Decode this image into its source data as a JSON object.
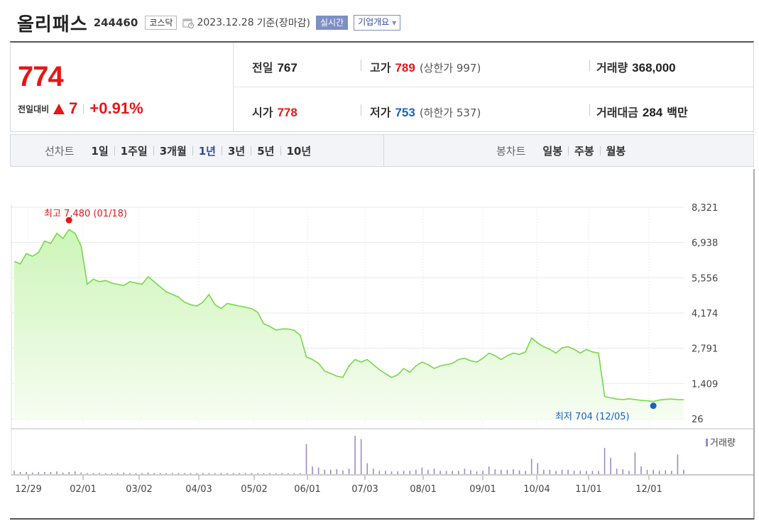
{
  "header": {
    "name": "올리패스",
    "code": "244460",
    "market": "코스닥",
    "date": "2023.12.28",
    "basis": "기준(장마감)",
    "realtime_label": "실시간",
    "company_label": "기업개요"
  },
  "price": {
    "current": "774",
    "change_label": "전일대비",
    "change": "7",
    "change_pct": "+0.91%",
    "prev_close_label": "전일",
    "prev_close": "767",
    "high_label": "고가",
    "high": "789",
    "upper_limit": "(상한가 997)",
    "volume_label": "거래량",
    "volume": "368,000",
    "open_label": "시가",
    "open": "778",
    "low_label": "저가",
    "low": "753",
    "lower_limit": "(하한가 537)",
    "amount_label": "거래대금",
    "amount": "284",
    "amount_unit": "백만"
  },
  "tabs": {
    "line_label": "선차트",
    "line_periods": [
      "1일",
      "1주일",
      "3개월",
      "1년",
      "3년",
      "5년",
      "10년"
    ],
    "selected": "1년",
    "candle_label": "봉차트",
    "candle_periods": [
      "일봉",
      "주봉",
      "월봉"
    ]
  },
  "colors": {
    "up": "#e51717",
    "down": "#1663c6",
    "line": "#76d84a",
    "fill_top": "#cdf5b8",
    "fill_bottom": "#f6fdf2",
    "volume": "#9b8bc7",
    "selected_tab": "#2f4ba3"
  },
  "chart_data": {
    "type": "area",
    "y_ticks": [
      "8,321",
      "6,938",
      "5,556",
      "4,174",
      "2,791",
      "1,409",
      "26"
    ],
    "ylim": [
      26,
      8321
    ],
    "x_ticks": [
      "12/29",
      "02/01",
      "03/02",
      "04/03",
      "05/02",
      "06/01",
      "07/03",
      "08/01",
      "09/01",
      "10/04",
      "11/01",
      "12/01"
    ],
    "high_label": "최고 7,480 (01/18)",
    "low_label": "최저 704 (12/05)",
    "high": {
      "value": 7480,
      "date": "01/18"
    },
    "low": {
      "value": 704,
      "date": "12/05"
    },
    "volume_label": "거래량",
    "series": [
      {
        "values": [
          6200,
          6100,
          6500,
          6400,
          6550,
          7000,
          6900,
          7300,
          7100,
          7450,
          7300,
          6800,
          5300,
          5500,
          5400,
          5450,
          5350,
          5300,
          5250,
          5400,
          5350,
          5300,
          5600,
          5400,
          5200,
          5000,
          4900,
          4800,
          4600,
          4500,
          4450,
          4600,
          4900,
          4500,
          4350,
          4550,
          4500,
          4450,
          4400,
          4350,
          4200,
          3750,
          3650,
          3500,
          3550,
          3550,
          3500,
          3300,
          2450,
          2350,
          2200,
          1900,
          1800,
          1700,
          1650,
          2100,
          2350,
          2250,
          2350,
          2150,
          1950,
          1800,
          1650,
          1750,
          2000,
          1850,
          2100,
          2250,
          2150,
          2000,
          2100,
          2150,
          2200,
          2350,
          2400,
          2300,
          2250,
          2400,
          2600,
          2500,
          2350,
          2500,
          2600,
          2550,
          2650,
          3200,
          3000,
          2850,
          2750,
          2600,
          2800,
          2850,
          2750,
          2600,
          2750,
          2650,
          2600,
          900,
          850,
          800,
          780,
          810,
          780,
          750,
          730,
          704,
          760,
          790,
          800,
          780,
          774
        ]
      }
    ],
    "volume_values": [
      6,
      4,
      4,
      3,
      4,
      4,
      4,
      5,
      3,
      4,
      5,
      3,
      2,
      2,
      2,
      2,
      2,
      2,
      3,
      2,
      2,
      2,
      3,
      2,
      2,
      2,
      2,
      2,
      2,
      2,
      2,
      2,
      2,
      2,
      2,
      2,
      2,
      2,
      2,
      2,
      2,
      2,
      2,
      2,
      2,
      2,
      2,
      2,
      55,
      14,
      12,
      8,
      8,
      9,
      7,
      10,
      70,
      64,
      20,
      10,
      6,
      6,
      5,
      5,
      6,
      6,
      8,
      12,
      8,
      10,
      6,
      6,
      6,
      6,
      10,
      7,
      5,
      6,
      14,
      9,
      8,
      8,
      9,
      7,
      6,
      28,
      20,
      8,
      8,
      6,
      8,
      8,
      6,
      6,
      6,
      6,
      6,
      48,
      30,
      10,
      9,
      6,
      40,
      14,
      8,
      8,
      6,
      7,
      6,
      36,
      8
    ]
  }
}
